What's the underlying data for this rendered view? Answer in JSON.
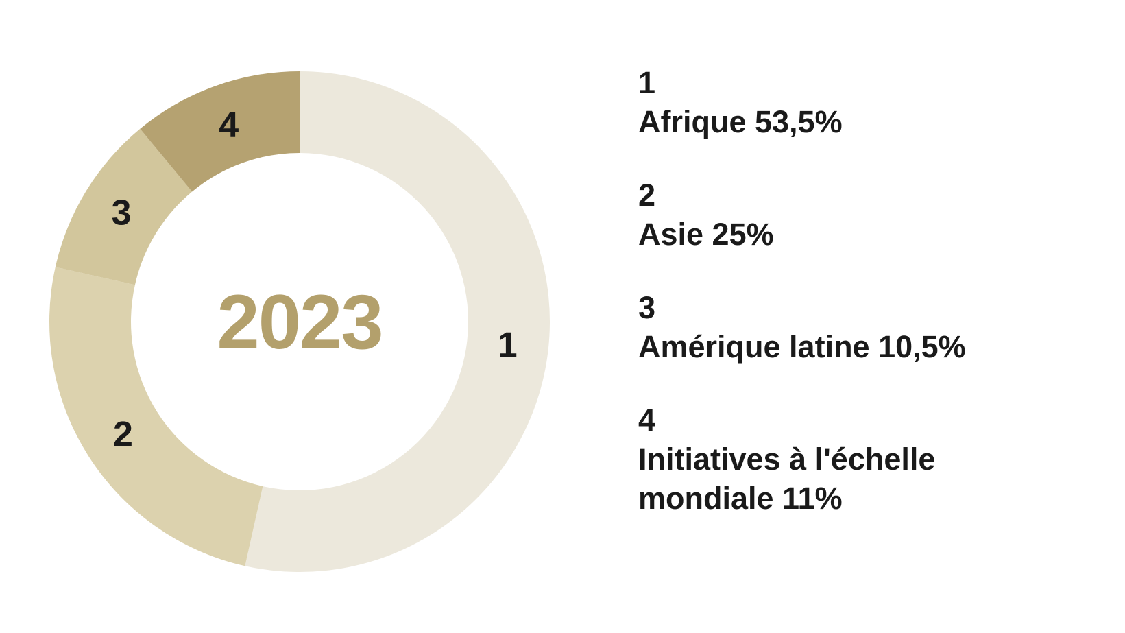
{
  "background_color": "#ffffff",
  "chart_data": {
    "type": "pie",
    "subtype": "donut",
    "title": "2023",
    "center_label": "2023",
    "center_label_color": "#b3a06c",
    "start_angle_deg": 0,
    "direction": "clockwise",
    "segment_number_label_color": "#1a1a1a",
    "categories": [
      "Afrique",
      "Asie",
      "Amérique latine",
      "Initiatives à l'échelle mondiale"
    ],
    "values": [
      53.5,
      25,
      10.5,
      11
    ],
    "segments": [
      {
        "number": "1",
        "name": "Afrique",
        "value_pct": 53.5,
        "color": "#ece8dc"
      },
      {
        "number": "2",
        "name": "Asie",
        "value_pct": 25,
        "color": "#dcd2ae"
      },
      {
        "number": "3",
        "name": "Amérique latine",
        "value_pct": 10.5,
        "color": "#d2c69c"
      },
      {
        "number": "4",
        "name": "Initiatives à l'échelle mondiale",
        "value_pct": 11,
        "color": "#b5a271"
      }
    ],
    "legend_position": "right",
    "grid": false
  },
  "legend": {
    "text_color": "#1a1a1a",
    "items": [
      {
        "number": "1",
        "label": "Afrique 53,5%"
      },
      {
        "number": "2",
        "label": "Asie 25%"
      },
      {
        "number": "3",
        "label": "Amérique latine 10,5%"
      },
      {
        "number": "4",
        "label": "Initiatives à l'échelle mondiale 11%"
      }
    ]
  }
}
